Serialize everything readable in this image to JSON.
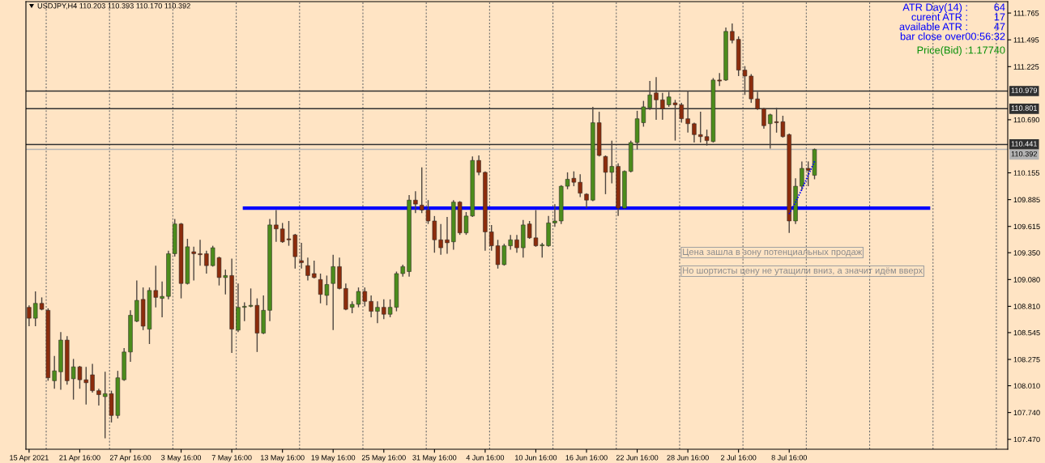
{
  "chart_data": {
    "type": "candlestick",
    "title": "USDJPY,H4 110.203 110.393 110.170 110.392",
    "categories": [
      "15 Apr 2021",
      null,
      null,
      null,
      null,
      null,
      null,
      null,
      "21 Apr 16:00",
      null,
      null,
      null,
      null,
      null,
      null,
      null,
      "27 Apr 16:00",
      null,
      null,
      null,
      null,
      null,
      null,
      null,
      "3 May 16:00",
      null,
      null,
      null,
      null,
      null,
      null,
      null,
      "7 May 16:00",
      null,
      null,
      null,
      null,
      null,
      null,
      null,
      "13 May 16:00",
      null,
      null,
      null,
      null,
      null,
      null,
      null,
      "19 May 16:00",
      null,
      null,
      null,
      null,
      null,
      null,
      null,
      "25 May 16:00",
      null,
      null,
      null,
      null,
      null,
      null,
      null,
      "31 May 16:00",
      null,
      null,
      null,
      null,
      null,
      null,
      null,
      "4 Jun 16:00",
      null,
      null,
      null,
      null,
      null,
      null,
      null,
      "10 Jun 16:00",
      null,
      null,
      null,
      null,
      null,
      null,
      null,
      "16 Jun 16:00",
      null,
      null,
      null,
      null,
      null,
      null,
      null,
      "22 Jun 16:00",
      null,
      null,
      null,
      null,
      null,
      null,
      null,
      "28 Jun 16:00",
      null,
      null,
      null,
      null,
      null,
      null,
      null,
      "2 Jul 16:00",
      null,
      null,
      null,
      null,
      null,
      null,
      null,
      "8 Jul 16:00",
      null,
      null,
      null,
      null,
      null,
      null,
      null,
      null,
      null,
      null,
      null,
      null,
      null,
      null,
      null,
      null,
      null,
      null,
      null,
      null,
      null,
      null,
      null,
      null,
      null,
      null,
      null,
      null,
      null,
      null,
      null,
      null,
      null,
      null
    ],
    "ohlc": [
      [
        108.8,
        108.82,
        108.61,
        108.69
      ],
      [
        108.69,
        108.96,
        108.61,
        108.84
      ],
      [
        108.84,
        108.9,
        108.77,
        108.78
      ],
      [
        108.77,
        108.79,
        108.06,
        108.09
      ],
      [
        108.06,
        108.31,
        107.98,
        108.16
      ],
      [
        108.15,
        108.55,
        107.97,
        108.47
      ],
      [
        108.47,
        108.51,
        108.02,
        108.06
      ],
      [
        108.08,
        108.28,
        107.87,
        108.2
      ],
      [
        108.2,
        108.21,
        107.98,
        108.07
      ],
      [
        108.07,
        108.2,
        107.82,
        108.04
      ],
      [
        108.12,
        108.23,
        107.94,
        107.96
      ],
      [
        107.96,
        107.98,
        107.81,
        107.92
      ],
      [
        107.9,
        108.15,
        107.48,
        107.93
      ],
      [
        107.93,
        107.96,
        107.64,
        107.71
      ],
      [
        107.71,
        108.16,
        107.68,
        108.09
      ],
      [
        108.07,
        108.39,
        108.06,
        108.35
      ],
      [
        108.35,
        108.77,
        108.25,
        108.72
      ],
      [
        108.66,
        109.07,
        108.65,
        108.87
      ],
      [
        108.88,
        109.0,
        108.57,
        108.61
      ],
      [
        108.58,
        109.0,
        108.43,
        108.97
      ],
      [
        108.97,
        109.22,
        108.8,
        108.9
      ],
      [
        108.89,
        109.06,
        108.7,
        108.91
      ],
      [
        108.91,
        109.37,
        108.88,
        109.34
      ],
      [
        109.34,
        109.69,
        109.31,
        109.64
      ],
      [
        109.64,
        109.65,
        108.89,
        109.04
      ],
      [
        109.04,
        109.49,
        109.03,
        109.41
      ],
      [
        109.36,
        109.41,
        109.07,
        109.34
      ],
      [
        109.34,
        109.48,
        109.22,
        109.33
      ],
      [
        109.34,
        109.37,
        109.14,
        109.22
      ],
      [
        109.22,
        109.42,
        109.21,
        109.4
      ],
      [
        109.3,
        109.31,
        109.02,
        109.1
      ],
      [
        109.1,
        109.18,
        108.93,
        109.12
      ],
      [
        109.12,
        109.29,
        108.34,
        108.58
      ],
      [
        108.57,
        109.04,
        108.55,
        108.8
      ],
      [
        108.8,
        108.85,
        108.66,
        108.81
      ],
      [
        108.81,
        108.99,
        108.8,
        108.82
      ],
      [
        108.82,
        108.89,
        108.35,
        108.54
      ],
      [
        108.54,
        108.92,
        108.53,
        108.77
      ],
      [
        108.77,
        109.69,
        108.66,
        109.63
      ],
      [
        109.63,
        109.78,
        109.46,
        109.59
      ],
      [
        109.59,
        109.65,
        109.45,
        109.46
      ],
      [
        109.49,
        109.67,
        109.42,
        109.48
      ],
      [
        109.53,
        109.54,
        109.19,
        109.31
      ],
      [
        109.27,
        109.45,
        109.19,
        109.25
      ],
      [
        109.22,
        109.3,
        109.07,
        109.12
      ],
      [
        109.14,
        109.27,
        109.09,
        109.1
      ],
      [
        109.08,
        109.14,
        108.84,
        108.93
      ],
      [
        108.92,
        109.12,
        108.82,
        109.03
      ],
      [
        109.04,
        109.33,
        108.57,
        109.21
      ],
      [
        109.21,
        109.3,
        108.98,
        108.99
      ],
      [
        108.99,
        109.04,
        108.77,
        108.78
      ],
      [
        108.8,
        108.86,
        108.74,
        108.83
      ],
      [
        108.83,
        109.0,
        108.8,
        108.96
      ],
      [
        108.96,
        109.0,
        108.81,
        108.86
      ],
      [
        108.86,
        108.92,
        108.7,
        108.76
      ],
      [
        108.76,
        108.86,
        108.64,
        108.8
      ],
      [
        108.8,
        108.88,
        108.68,
        108.73
      ],
      [
        108.73,
        108.88,
        108.7,
        108.8
      ],
      [
        108.8,
        109.16,
        108.76,
        109.14
      ],
      [
        109.14,
        109.23,
        109.11,
        109.21
      ],
      [
        109.16,
        109.93,
        109.11,
        109.88
      ],
      [
        109.88,
        109.97,
        109.75,
        109.84
      ],
      [
        109.83,
        110.21,
        109.75,
        109.78
      ],
      [
        109.78,
        109.88,
        109.64,
        109.67
      ],
      [
        109.67,
        109.72,
        109.35,
        109.48
      ],
      [
        109.48,
        109.64,
        109.33,
        109.4
      ],
      [
        109.48,
        109.71,
        109.34,
        109.45
      ],
      [
        109.46,
        109.88,
        109.38,
        109.86
      ],
      [
        109.86,
        109.87,
        109.53,
        109.55
      ],
      [
        109.55,
        109.76,
        109.53,
        109.72
      ],
      [
        109.72,
        110.32,
        109.71,
        110.28
      ],
      [
        110.28,
        110.33,
        110.13,
        110.16
      ],
      [
        110.16,
        110.17,
        109.37,
        109.56
      ],
      [
        109.56,
        109.63,
        109.37,
        109.42
      ],
      [
        109.42,
        109.48,
        109.19,
        109.23
      ],
      [
        109.23,
        109.44,
        109.22,
        109.42
      ],
      [
        109.42,
        109.53,
        109.38,
        109.48
      ],
      [
        109.48,
        109.53,
        109.35,
        109.4
      ],
      [
        109.4,
        109.68,
        109.3,
        109.63
      ],
      [
        109.64,
        109.67,
        109.49,
        109.5
      ],
      [
        109.5,
        109.78,
        109.41,
        109.42
      ],
      [
        109.42,
        109.45,
        109.3,
        109.43
      ],
      [
        109.42,
        109.72,
        109.41,
        109.65
      ],
      [
        109.65,
        109.84,
        109.61,
        109.67
      ],
      [
        109.67,
        110.03,
        109.64,
        110.02
      ],
      [
        110.02,
        110.16,
        109.99,
        110.09
      ],
      [
        110.1,
        110.17,
        110.02,
        110.06
      ],
      [
        110.06,
        110.14,
        109.91,
        109.95
      ],
      [
        109.94,
        109.95,
        109.8,
        109.88
      ],
      [
        109.88,
        110.82,
        109.87,
        110.66
      ],
      [
        110.66,
        110.77,
        110.32,
        110.33
      ],
      [
        110.32,
        110.33,
        109.94,
        110.16
      ],
      [
        110.16,
        110.48,
        110.05,
        110.22
      ],
      [
        110.22,
        110.25,
        109.72,
        109.8
      ],
      [
        109.8,
        110.18,
        109.79,
        110.17
      ],
      [
        110.17,
        110.48,
        110.16,
        110.46
      ],
      [
        110.46,
        110.78,
        110.39,
        110.7
      ],
      [
        110.66,
        110.88,
        110.62,
        110.82
      ],
      [
        110.81,
        111.08,
        110.79,
        110.94
      ],
      [
        110.96,
        111.12,
        110.69,
        110.89
      ],
      [
        110.89,
        110.96,
        110.69,
        110.8
      ],
      [
        110.84,
        110.97,
        110.82,
        110.92
      ],
      [
        110.86,
        110.89,
        110.48,
        110.84
      ],
      [
        110.84,
        110.86,
        110.66,
        110.7
      ],
      [
        110.7,
        110.98,
        110.56,
        110.65
      ],
      [
        110.65,
        110.66,
        110.46,
        110.54
      ],
      [
        110.54,
        110.77,
        110.46,
        110.52
      ],
      [
        110.52,
        110.59,
        110.43,
        110.48
      ],
      [
        110.47,
        111.11,
        110.46,
        111.09
      ],
      [
        111.09,
        111.16,
        111.03,
        111.08
      ],
      [
        111.09,
        111.62,
        111.08,
        111.58
      ],
      [
        111.58,
        111.66,
        111.46,
        111.49
      ],
      [
        111.5,
        111.53,
        111.13,
        111.19
      ],
      [
        111.19,
        111.23,
        110.94,
        111.13
      ],
      [
        111.13,
        111.15,
        110.86,
        110.9
      ],
      [
        110.9,
        110.97,
        110.79,
        110.8
      ],
      [
        110.8,
        110.81,
        110.6,
        110.63
      ],
      [
        110.65,
        110.75,
        110.4,
        110.74
      ],
      [
        110.67,
        110.81,
        110.56,
        110.66
      ],
      [
        110.67,
        110.73,
        110.51,
        110.52
      ],
      [
        110.54,
        110.55,
        109.55,
        109.67
      ],
      [
        109.67,
        110.1,
        109.64,
        110.02
      ],
      [
        110.02,
        110.27,
        109.98,
        110.2
      ],
      [
        110.2,
        110.27,
        110.02,
        110.18
      ],
      [
        110.13,
        110.4,
        110.09,
        110.39
      ],
      null,
      null,
      null,
      null,
      null,
      null,
      null,
      null,
      null,
      null,
      null,
      null,
      null,
      null,
      null,
      null,
      null,
      null,
      null,
      null,
      null,
      null,
      null,
      null,
      null,
      null,
      null,
      null,
      null,
      null
    ],
    "colors": [
      "#8c2c0c",
      "#4c8c1c",
      "#8c2c0c",
      "#8c2c0c",
      "#4c8c1c",
      "#4c8c1c",
      "#8c2c0c",
      "#4c8c1c",
      "#8c2c0c",
      "#8c2c0c",
      "#8c2c0c",
      "#8c2c0c",
      "#4c8c1c",
      "#8c2c0c",
      "#4c8c1c",
      "#4c8c1c",
      "#4c8c1c",
      "#4c8c1c",
      "#8c2c0c",
      "#4c8c1c",
      "#8c2c0c",
      "#4c8c1c",
      "#4c8c1c",
      "#4c8c1c",
      "#8c2c0c",
      "#4c8c1c",
      "#8c2c0c",
      "#8c2c0c",
      "#8c2c0c",
      "#4c8c1c",
      "#8c2c0c",
      "#4c8c1c",
      "#8c2c0c",
      "#4c8c1c",
      "#4c8c1c",
      "#4c8c1c",
      "#8c2c0c",
      "#4c8c1c",
      "#4c8c1c",
      "#8c2c0c",
      "#8c2c0c",
      "#8c2c0c",
      "#8c2c0c",
      "#8c2c0c",
      "#8c2c0c",
      "#8c2c0c",
      "#8c2c0c",
      "#4c8c1c",
      "#4c8c1c",
      "#8c2c0c",
      "#8c2c0c",
      "#4c8c1c",
      "#4c8c1c",
      "#8c2c0c",
      "#8c2c0c",
      "#4c8c1c",
      "#8c2c0c",
      "#4c8c1c",
      "#4c8c1c",
      "#4c8c1c",
      "#4c8c1c",
      "#8c2c0c",
      "#8c2c0c",
      "#8c2c0c",
      "#8c2c0c",
      "#8c2c0c",
      "#8c2c0c",
      "#4c8c1c",
      "#8c2c0c",
      "#4c8c1c",
      "#4c8c1c",
      "#8c2c0c",
      "#8c2c0c",
      "#8c2c0c",
      "#8c2c0c",
      "#4c8c1c",
      "#4c8c1c",
      "#8c2c0c",
      "#4c8c1c",
      "#8c2c0c",
      "#8c2c0c",
      "#4c8c1c",
      "#4c8c1c",
      "#4c8c1c",
      "#4c8c1c",
      "#4c8c1c",
      "#8c2c0c",
      "#8c2c0c",
      "#8c2c0c",
      "#4c8c1c",
      "#8c2c0c",
      "#8c2c0c",
      "#4c8c1c",
      "#8c2c0c",
      "#4c8c1c",
      "#4c8c1c",
      "#4c8c1c",
      "#4c8c1c",
      "#4c8c1c",
      "#8c2c0c",
      "#8c2c0c",
      "#4c8c1c",
      "#8c2c0c",
      "#8c2c0c",
      "#8c2c0c",
      "#8c2c0c",
      "#8c2c0c",
      "#8c2c0c",
      "#4c8c1c",
      "#8c2c0c",
      "#4c8c1c",
      "#8c2c0c",
      "#8c2c0c",
      "#8c2c0c",
      "#8c2c0c",
      "#8c2c0c",
      "#8c2c0c",
      "#4c8c1c",
      "#8c2c0c",
      "#8c2c0c",
      "#8c2c0c",
      "#4c8c1c",
      "#4c8c1c",
      "#8c2c0c",
      "#4c8c1c",
      null,
      null,
      null,
      null,
      null,
      null,
      null,
      null,
      null,
      null,
      null,
      null,
      null,
      null,
      null,
      null,
      null,
      null,
      null,
      null,
      null,
      null,
      null,
      null,
      null,
      null,
      null,
      null,
      null,
      null
    ],
    "series": [
      {
        "type": "line",
        "color": "#0000ff",
        "line_style": "solid",
        "values": [
          null,
          null,
          null,
          null,
          null,
          null,
          null,
          null,
          null,
          null,
          null,
          null,
          null,
          null,
          null,
          null,
          null,
          null,
          null,
          null,
          null,
          null,
          null,
          null,
          null,
          null,
          null,
          null,
          null,
          null,
          null,
          null,
          null,
          null,
          109.8,
          109.8,
          109.8,
          109.8,
          109.8,
          109.8,
          109.8,
          109.8,
          109.8,
          109.8,
          109.8,
          109.8,
          109.8,
          109.8,
          109.8,
          109.8,
          109.8,
          109.8,
          109.8,
          109.8,
          109.8,
          109.8,
          109.8,
          109.8,
          109.8,
          109.8,
          109.8,
          109.8,
          109.8,
          109.8,
          109.8,
          109.8,
          109.8,
          109.8,
          109.8,
          109.8,
          109.8,
          109.8,
          109.8,
          109.8,
          109.8,
          109.8,
          109.8,
          109.8,
          109.8,
          109.8,
          109.8,
          109.8,
          109.8,
          109.8,
          109.8,
          109.8,
          109.8,
          109.8,
          109.8,
          109.8,
          109.8,
          109.8,
          109.8,
          109.8,
          109.8,
          109.8,
          109.8,
          109.8,
          109.8,
          109.8,
          109.8,
          109.8,
          109.8,
          109.8,
          109.8,
          109.8,
          109.8,
          109.8,
          109.8,
          109.8,
          109.8,
          109.8,
          109.8,
          109.8,
          109.8,
          109.8,
          109.8,
          109.8,
          109.8,
          109.8,
          109.8,
          109.8,
          109.8,
          109.8,
          109.8,
          109.8,
          109.8,
          109.8,
          109.8,
          109.8,
          109.8,
          109.8,
          109.8,
          109.8,
          109.8,
          109.8,
          109.8,
          109.8,
          109.8,
          109.8,
          109.8,
          109.8,
          109.8,
          null,
          null,
          null,
          null,
          null,
          null,
          null,
          null,
          null,
          null,
          null,
          null
        ]
      },
      {
        "type": "line",
        "color": "#0000ff",
        "line_style": "dotted",
        "values": [
          null,
          null,
          null,
          null,
          null,
          null,
          null,
          null,
          null,
          null,
          null,
          null,
          null,
          null,
          null,
          null,
          null,
          null,
          null,
          null,
          null,
          null,
          null,
          null,
          null,
          null,
          null,
          null,
          null,
          null,
          null,
          null,
          null,
          null,
          null,
          null,
          null,
          null,
          null,
          null,
          null,
          null,
          null,
          null,
          null,
          null,
          null,
          null,
          null,
          null,
          null,
          null,
          null,
          null,
          null,
          null,
          null,
          null,
          null,
          null,
          null,
          null,
          null,
          null,
          null,
          null,
          null,
          null,
          null,
          null,
          null,
          null,
          null,
          null,
          null,
          null,
          null,
          null,
          null,
          null,
          null,
          null,
          null,
          null,
          null,
          null,
          null,
          null,
          null,
          null,
          null,
          null,
          null,
          null,
          null,
          null,
          null,
          null,
          null,
          null,
          null,
          null,
          null,
          null,
          null,
          null,
          null,
          null,
          null,
          null,
          null,
          null,
          null,
          null,
          null,
          null,
          null,
          null,
          null,
          null,
          109.74,
          109.86,
          109.99,
          110.13,
          110.27,
          null,
          null,
          null,
          null,
          null,
          null,
          null,
          null,
          null,
          null,
          null,
          null,
          null,
          null,
          null,
          null,
          null,
          null,
          null,
          null,
          null,
          null,
          null,
          null,
          null,
          null,
          null,
          null,
          null,
          null
        ]
      }
    ],
    "ylim": [
      107.37,
      111.88
    ],
    "yticks": [
      111.765,
      111.495,
      111.225,
      {
        "value": 110.69,
        "label": "110.690"
      },
      110.155,
      109.885,
      109.615,
      {
        "value": 109.35,
        "label": "109.350"
      },
      {
        "value": 109.08,
        "label": "109.080"
      },
      {
        "value": 108.81,
        "label": "108.810"
      },
      108.545,
      108.275,
      {
        "value": 108.01,
        "label": "108.010"
      },
      {
        "value": 107.74,
        "label": "107.740"
      },
      {
        "value": 107.47,
        "label": "107.470"
      }
    ],
    "ref_lines": [
      {
        "axis": "y",
        "value": 110.979,
        "label": "110.979",
        "color": "#303030"
      },
      {
        "axis": "y",
        "value": 110.801,
        "label": "110.801",
        "color": "#303030"
      },
      {
        "axis": "y",
        "value": 110.441,
        "label": "110.441",
        "color": "#303030"
      },
      {
        "axis": "y",
        "value": 110.392,
        "label": "110.392",
        "color": "#b4b4b4"
      }
    ],
    "annotations": [
      "ATR Day(14) :",
      "64",
      "curent ATR :",
      "17",
      "available ATR :",
      "47",
      "bar close over00:56:32",
      "Price(Bid) :1.17740",
      "Цена зашла в зону потенциальных продаж",
      "Но шортисты цену не утащили вниз, а значит идём вверх"
    ],
    "grid": "x"
  }
}
